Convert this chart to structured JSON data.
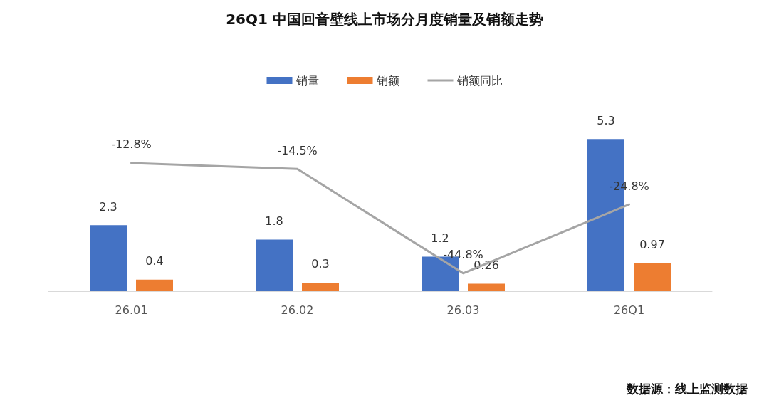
{
  "chart_data": {
    "type": "bar",
    "title": "26Q1 中国回音壁线上市场分月度销量及销额走势",
    "categories": [
      "26.01",
      "26.02",
      "26.03",
      "26Q1"
    ],
    "series": [
      {
        "name": "销量",
        "color": "#4472c4",
        "values": [
          2.3,
          1.8,
          1.2,
          5.3
        ],
        "value_labels": [
          "2.3",
          "1.8",
          "1.2",
          "5.3"
        ]
      },
      {
        "name": "销额",
        "color": "#ed7d31",
        "values": [
          0.4,
          0.3,
          0.26,
          0.97
        ],
        "value_labels": [
          "0.4",
          "0.3",
          "0.26",
          "0.97"
        ]
      },
      {
        "name": "销额同比",
        "type": "line",
        "axis": "y2",
        "color": "#a5a5a5",
        "values": [
          -12.8,
          -14.5,
          -44.8,
          -24.8
        ],
        "value_labels": [
          "-12.8%",
          "-14.5%",
          "-44.8%",
          "-24.8%"
        ]
      }
    ],
    "tick_labels": "x",
    "legend": "top",
    "marker": "none",
    "line_style": "solid",
    "annotations": [
      "数据源：线上监测数据"
    ]
  }
}
